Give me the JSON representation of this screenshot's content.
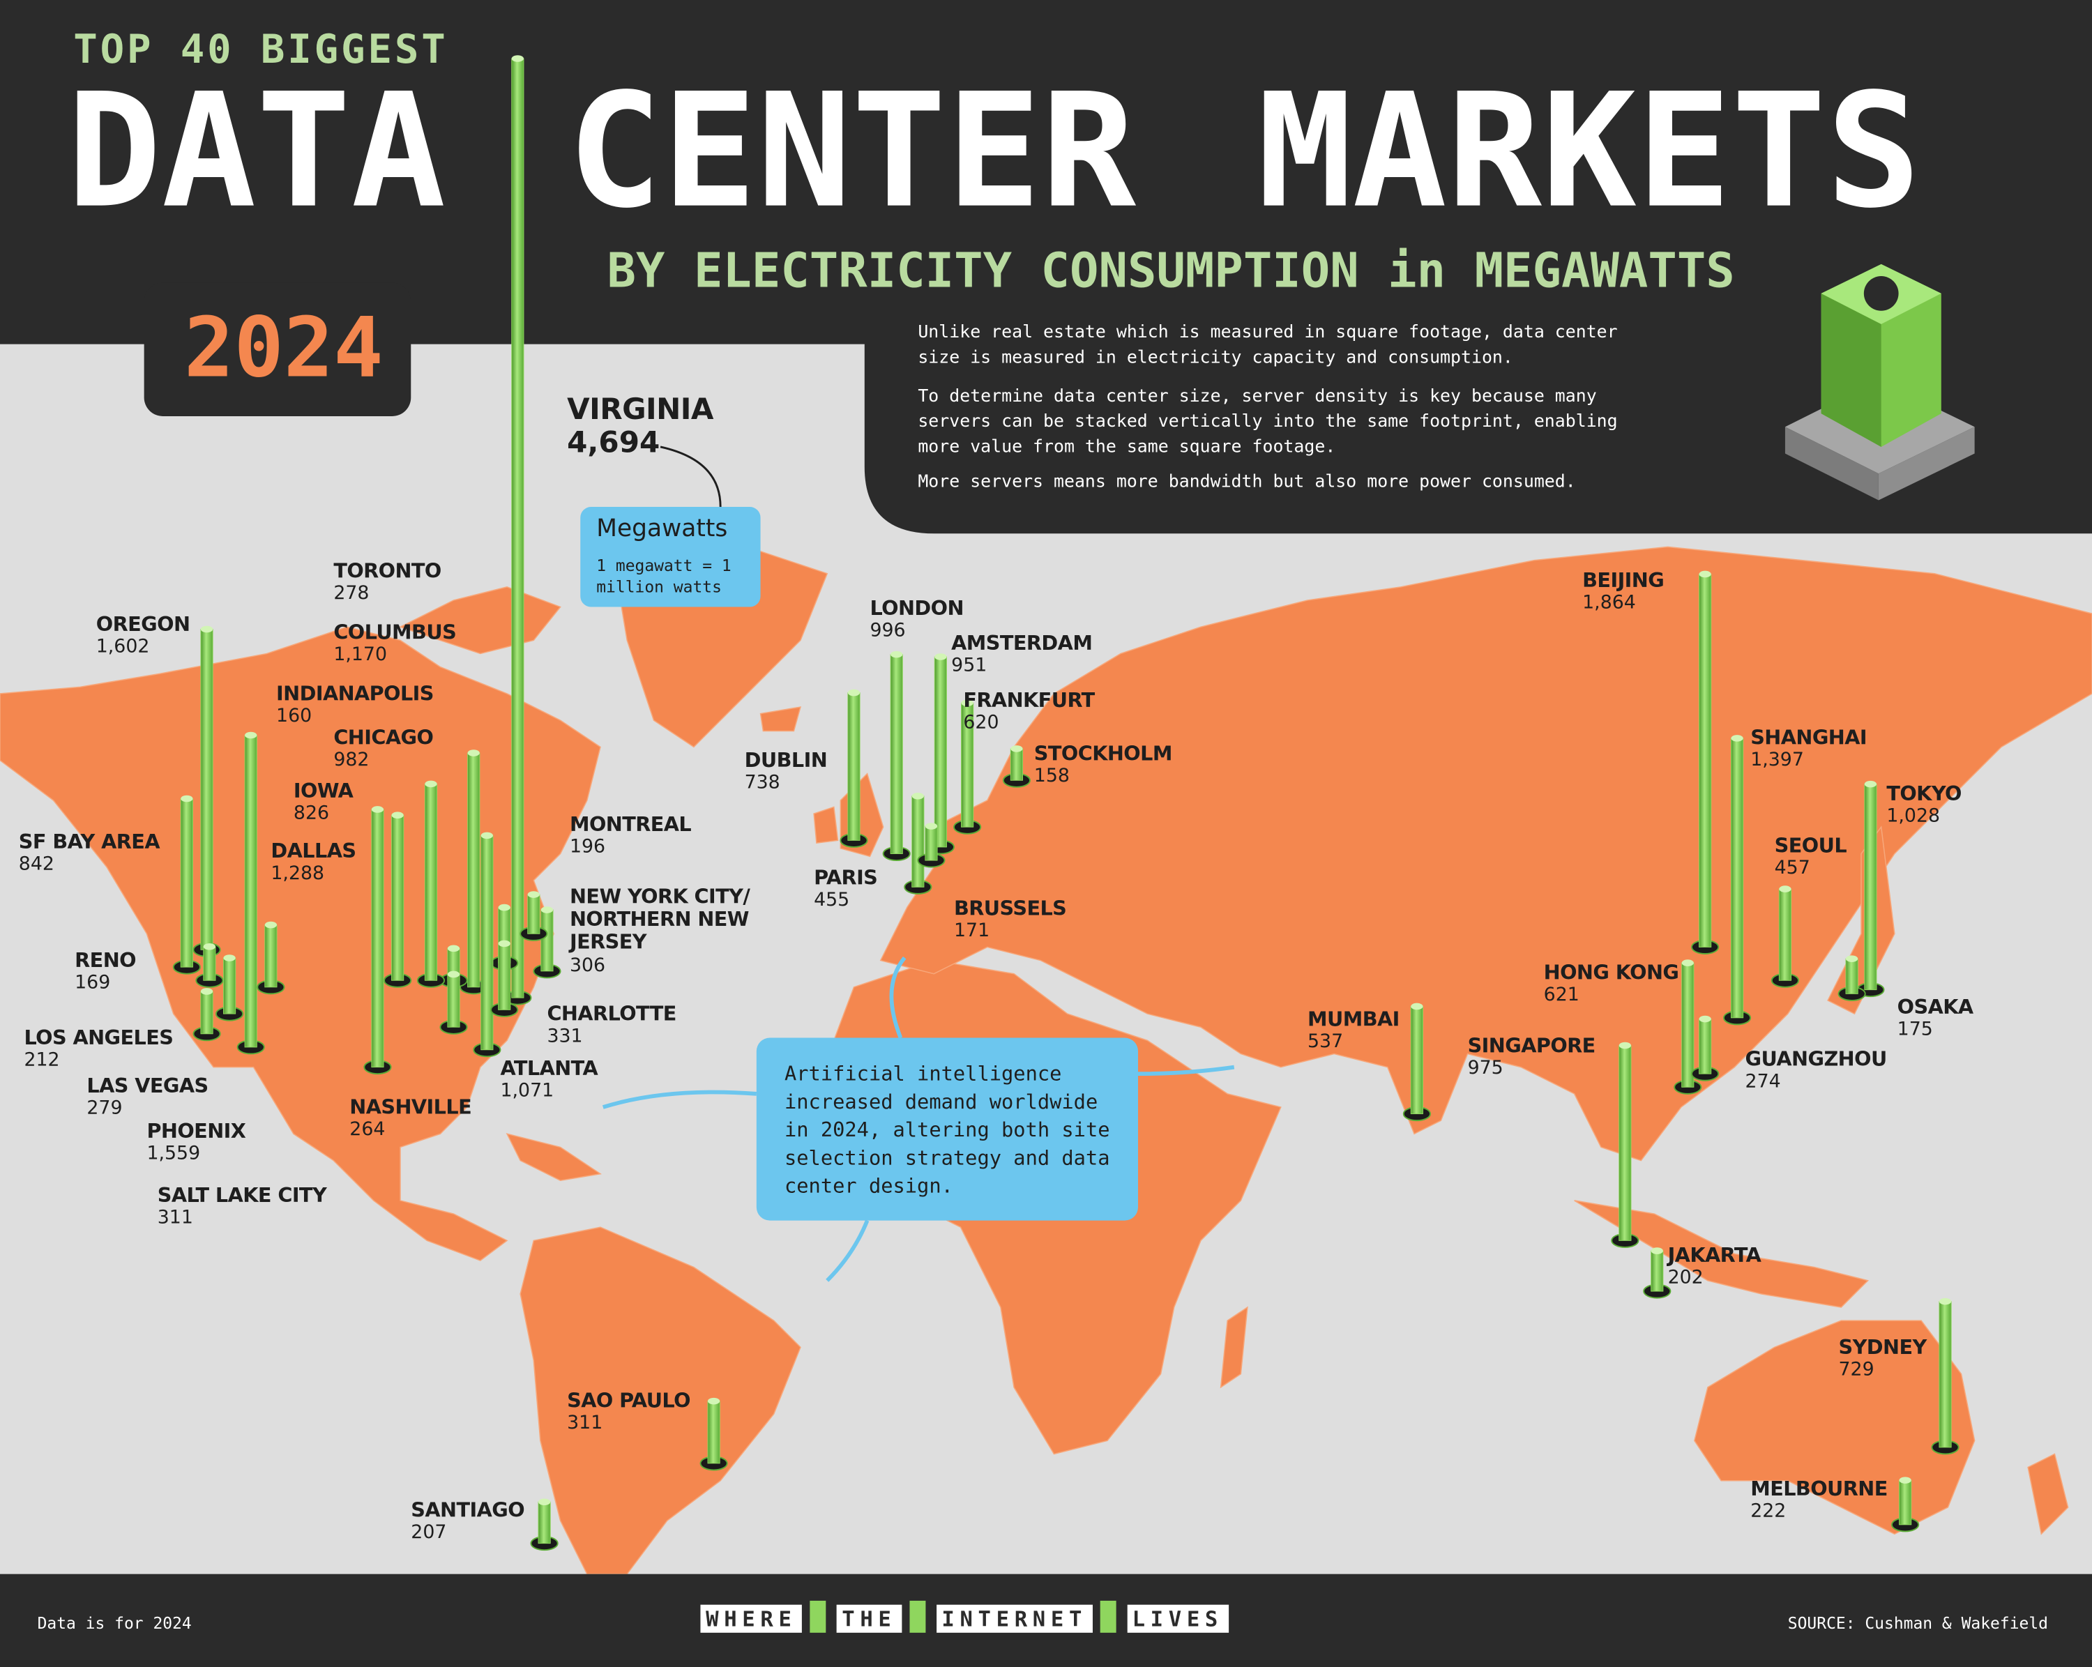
{
  "chart_data": {
    "type": "map_bar",
    "kicker": "TOP 40 BIGGEST",
    "title": "DATA CENTER MARKETS",
    "subtitle": "BY ELECTRICITY CONSUMPTION in MEGAWATTS",
    "year": "2024",
    "notes": [
      "Unlike real estate which is measured in square footage, data center size is measured in electricity capacity and consumption.",
      "To determine data center size, server density is key because many servers can be stacked vertically into the same footprint, enabling more value from the same square footage.",
      "More servers means more bandwidth but also more power consumed."
    ],
    "unit_box": {
      "title": "Megawatts",
      "text": "1 megawatt = 1 million watts"
    },
    "callout": "Artificial intelligence increased demand worldwide in 2024, altering both site selection strategy and data center design.",
    "categories": [
      "VIRGINIA",
      "OREGON",
      "TORONTO",
      "COLUMBUS",
      "INDIANAPOLIS",
      "CHICAGO",
      "IOWA",
      "DALLAS",
      "SF BAY AREA",
      "RENO",
      "LOS ANGELES",
      "LAS VEGAS",
      "PHOENIX",
      "SALT LAKE CITY",
      "NASHVILLE",
      "ATLANTA",
      "CHARLOTTE",
      "NEW YORK CITY/ NORTHERN NEW JERSEY",
      "MONTREAL",
      "LONDON",
      "DUBLIN",
      "AMSTERDAM",
      "FRANKFURT",
      "STOCKHOLM",
      "PARIS",
      "BRUSSELS",
      "BEIJING",
      "SHANGHAI",
      "TOKYO",
      "SEOUL",
      "OSAKA",
      "HONG KONG",
      "GUANGZHOU",
      "MUMBAI",
      "SINGAPORE",
      "JAKARTA",
      "SYDNEY",
      "MELBOURNE",
      "SAO PAULO",
      "SANTIAGO"
    ],
    "values": [
      4694,
      1602,
      278,
      1170,
      160,
      982,
      826,
      1288,
      842,
      169,
      212,
      279,
      1559,
      311,
      264,
      1071,
      331,
      306,
      196,
      996,
      738,
      951,
      620,
      158,
      455,
      171,
      1864,
      1397,
      1028,
      457,
      175,
      621,
      274,
      537,
      975,
      202,
      729,
      222,
      311,
      207
    ],
    "value_labels": [
      "4,694",
      "1,602",
      "278",
      "1,170",
      "160",
      "982",
      "826",
      "1,288",
      "842",
      "169",
      "212",
      "279",
      "1,559",
      "311",
      "264",
      "1,071",
      "331",
      "306",
      "196",
      "996",
      "738",
      "951",
      "620",
      "158",
      "455",
      "171",
      "1,864",
      "1,397",
      "1,028",
      "457",
      "175",
      "621",
      "274",
      "537",
      "975",
      "202",
      "729",
      "222",
      "311",
      "207"
    ],
    "color": "#8fd65e",
    "footer": {
      "note": "Data is for 2024",
      "tagline": [
        "WHERE",
        "THE",
        "INTERNET",
        "LIVES"
      ],
      "source": "SOURCE: Cushman & Wakefield"
    }
  }
}
